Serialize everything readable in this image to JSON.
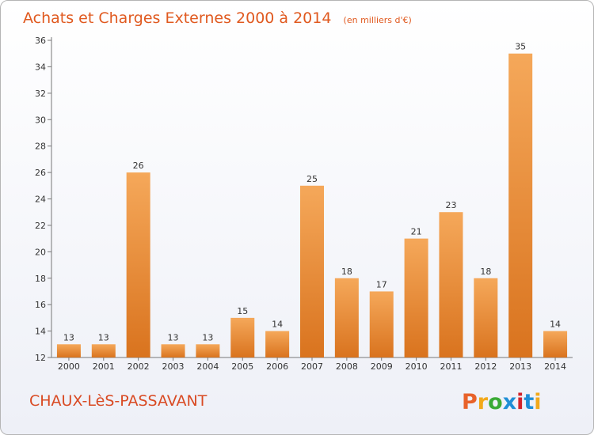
{
  "chart_data": {
    "type": "bar",
    "title": "Achats et Charges Externes 2000 à 2014",
    "subtitle": "(en milliers d'€)",
    "categories": [
      "2000",
      "2001",
      "2002",
      "2003",
      "2004",
      "2005",
      "2006",
      "2007",
      "2008",
      "2009",
      "2010",
      "2011",
      "2012",
      "2013",
      "2014"
    ],
    "values": [
      13,
      13,
      26,
      13,
      13,
      15,
      14,
      25,
      18,
      17,
      21,
      23,
      18,
      35,
      14
    ],
    "ylim": [
      12,
      36
    ],
    "yticks": [
      12,
      14,
      16,
      18,
      20,
      22,
      24,
      26,
      28,
      30,
      32,
      34,
      36
    ],
    "grid": false,
    "colors": {
      "bar_top": "#f5a85a",
      "bar_bottom": "#d9731e",
      "title": "#e0591f"
    }
  },
  "footer": {
    "commune": "CHAUX-LèS-PASSAVANT",
    "brand": "Proxiti",
    "brand_colors": [
      "#e8622a",
      "#f2a91b",
      "#3aaa35",
      "#1f8ed6",
      "#d2232a",
      "#1f8ed6",
      "#f2a91b"
    ]
  }
}
